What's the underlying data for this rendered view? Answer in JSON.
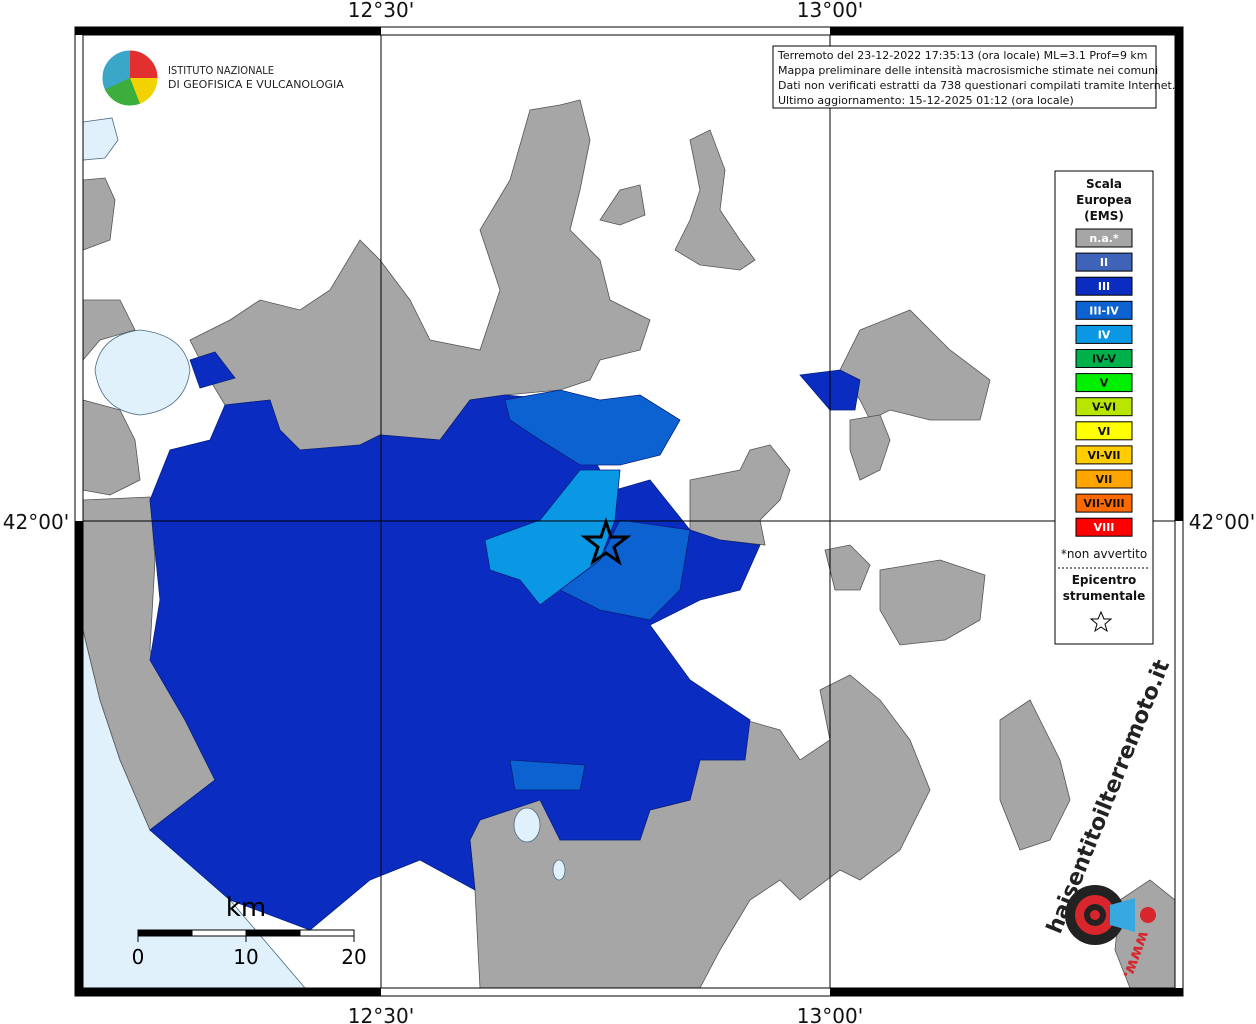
{
  "coordinates": {
    "top": [
      "12°30'",
      "13°00'"
    ],
    "bottom": [
      "12°30'",
      "13°00'"
    ],
    "left": [
      "42°00'"
    ],
    "right": [
      "42°00'"
    ]
  },
  "logo": {
    "line1": "ISTITUTO NAZIONALE",
    "line2": "DI GEOFISICA E VULCANOLOGIA"
  },
  "info": [
    "Terremoto del 23-12-2022 17:35:13 (ora locale) ML=3.1 Prof=9 km",
    "Mappa preliminare delle intensità macrosismiche stimate nei comuni",
    "Dati non verificati estratti da 738 questionari compilati tramite Internet.",
    "Ultimo aggiornamento: 15-12-2025 01:12 (ora locale)"
  ],
  "legend": {
    "title": [
      "Scala",
      "Europea",
      "(EMS)"
    ],
    "items": [
      {
        "label": "n.a.*",
        "color": "#a6a6a6",
        "text_color": "#ffffff"
      },
      {
        "label": "II",
        "color": "#3e63b8",
        "text_color": "#ffffff"
      },
      {
        "label": "III",
        "color": "#0a2cc0",
        "text_color": "#ffffff"
      },
      {
        "label": "III-IV",
        "color": "#0b62d0",
        "text_color": "#ffffff"
      },
      {
        "label": "IV",
        "color": "#0a98e4",
        "text_color": "#ffffff"
      },
      {
        "label": "IV-V",
        "color": "#00b04a",
        "text_color": "#111111"
      },
      {
        "label": "V",
        "color": "#00ee00",
        "text_color": "#111111"
      },
      {
        "label": "V-VI",
        "color": "#b8e600",
        "text_color": "#111111"
      },
      {
        "label": "VI",
        "color": "#ffff00",
        "text_color": "#111111"
      },
      {
        "label": "VI-VII",
        "color": "#ffcc00",
        "text_color": "#111111"
      },
      {
        "label": "VII",
        "color": "#ffa500",
        "text_color": "#111111"
      },
      {
        "label": "VII-VIII",
        "color": "#ff6a00",
        "text_color": "#111111"
      },
      {
        "label": "VIII",
        "color": "#ff0000",
        "text_color": "#ffffff"
      }
    ],
    "note": "*non avvertito",
    "epicenter": [
      "Epicentro",
      "strumentale"
    ]
  },
  "scale": {
    "unit": "km",
    "ticks": [
      0,
      10,
      20
    ]
  },
  "watermark": {
    "site": "haisentitoilterremoto.it",
    "prefix": "www."
  }
}
